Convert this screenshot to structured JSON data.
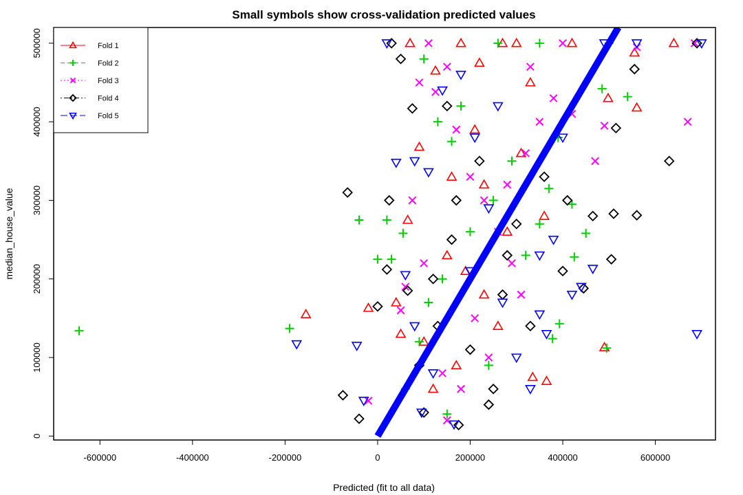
{
  "chart_data": {
    "type": "scatter",
    "title": "Small symbols show cross-validation predicted values",
    "xlabel": "Predicted (fit to all data)",
    "ylabel": "median_house_value",
    "xlim": [
      -700000,
      730000
    ],
    "ylim": [
      -5000,
      520000
    ],
    "x_ticks": [
      -600000,
      -400000,
      -200000,
      0,
      200000,
      400000,
      600000
    ],
    "x_tick_labels": [
      "-600000",
      "-400000",
      "-200000",
      "0",
      "200000",
      "400000",
      "600000"
    ],
    "y_ticks": [
      0,
      100000,
      200000,
      300000,
      400000,
      500000
    ],
    "y_tick_labels": [
      "0",
      "100000",
      "200000",
      "300000",
      "400000",
      "500000"
    ],
    "grid": false,
    "legend_position": "top-left",
    "diagonal": {
      "from": [
        0,
        0
      ],
      "to": [
        520000,
        520000
      ],
      "color": "#0000ff"
    },
    "series": [
      {
        "name": "Fold 1",
        "color": "#ff0000",
        "symbol": "triangle-up",
        "line": "solid",
        "points": [
          [
            -155000,
            155000
          ],
          [
            -20000,
            163000
          ],
          [
            40000,
            170000
          ],
          [
            65000,
            275000
          ],
          [
            90000,
            368000
          ],
          [
            125000,
            465000
          ],
          [
            220000,
            475000
          ],
          [
            335000,
            75000
          ],
          [
            365000,
            70000
          ],
          [
            490000,
            113000
          ],
          [
            498000,
            430000
          ],
          [
            560000,
            418000
          ],
          [
            555000,
            488000
          ],
          [
            230000,
            320000
          ],
          [
            280000,
            260000
          ],
          [
            150000,
            230000
          ],
          [
            190000,
            210000
          ],
          [
            310000,
            360000
          ],
          [
            260000,
            140000
          ],
          [
            100000,
            120000
          ],
          [
            170000,
            90000
          ],
          [
            330000,
            450000
          ],
          [
            210000,
            390000
          ],
          [
            120000,
            60000
          ],
          [
            270000,
            500000
          ],
          [
            70000,
            500000
          ],
          [
            180000,
            500000
          ],
          [
            300000,
            500000
          ],
          [
            420000,
            500000
          ],
          [
            640000,
            500000
          ],
          [
            50000,
            130000
          ],
          [
            230000,
            180000
          ],
          [
            360000,
            280000
          ],
          [
            160000,
            330000
          ]
        ]
      },
      {
        "name": "Fold 2",
        "color": "#00cd00",
        "symbols": "plus",
        "symbol": "plus",
        "line": "dashed",
        "points": [
          [
            -645000,
            134000
          ],
          [
            -190000,
            137000
          ],
          [
            -40000,
            275000
          ],
          [
            0,
            225000
          ],
          [
            20000,
            275000
          ],
          [
            30000,
            225000
          ],
          [
            55000,
            258000
          ],
          [
            90000,
            120000
          ],
          [
            130000,
            400000
          ],
          [
            160000,
            375000
          ],
          [
            350000,
            270000
          ],
          [
            370000,
            315000
          ],
          [
            378000,
            124000
          ],
          [
            393000,
            143000
          ],
          [
            420000,
            295000
          ],
          [
            425000,
            228000
          ],
          [
            450000,
            258000
          ],
          [
            485000,
            442000
          ],
          [
            495000,
            112000
          ],
          [
            540000,
            432000
          ],
          [
            200000,
            260000
          ],
          [
            250000,
            300000
          ],
          [
            290000,
            350000
          ],
          [
            140000,
            200000
          ],
          [
            110000,
            170000
          ],
          [
            240000,
            90000
          ],
          [
            320000,
            230000
          ],
          [
            180000,
            420000
          ],
          [
            100000,
            480000
          ],
          [
            260000,
            500000
          ],
          [
            350000,
            500000
          ],
          [
            500000,
            500000
          ],
          [
            60000,
            60000
          ],
          [
            390000,
            380000
          ],
          [
            150000,
            28000
          ]
        ]
      },
      {
        "name": "Fold 3",
        "color": "#ff00ff",
        "symbol": "cross",
        "line": "dotted",
        "points": [
          [
            -20000,
            45000
          ],
          [
            50000,
            160000
          ],
          [
            90000,
            450000
          ],
          [
            110000,
            500000
          ],
          [
            125000,
            438000
          ],
          [
            150000,
            470000
          ],
          [
            170000,
            390000
          ],
          [
            200000,
            330000
          ],
          [
            230000,
            300000
          ],
          [
            260000,
            260000
          ],
          [
            290000,
            220000
          ],
          [
            310000,
            180000
          ],
          [
            320000,
            360000
          ],
          [
            350000,
            400000
          ],
          [
            380000,
            430000
          ],
          [
            420000,
            410000
          ],
          [
            470000,
            350000
          ],
          [
            490000,
            395000
          ],
          [
            560000,
            495000
          ],
          [
            670000,
            400000
          ],
          [
            685000,
            500000
          ],
          [
            140000,
            80000
          ],
          [
            180000,
            60000
          ],
          [
            100000,
            220000
          ],
          [
            75000,
            300000
          ],
          [
            210000,
            150000
          ],
          [
            240000,
            100000
          ],
          [
            280000,
            320000
          ],
          [
            330000,
            470000
          ],
          [
            400000,
            500000
          ],
          [
            150000,
            20000
          ],
          [
            60000,
            190000
          ]
        ]
      },
      {
        "name": "Fold 4",
        "color": "#000000",
        "symbol": "diamond",
        "line": "dotdash",
        "points": [
          [
            -75000,
            52000
          ],
          [
            -65000,
            310000
          ],
          [
            -40000,
            22000
          ],
          [
            0,
            165000
          ],
          [
            25000,
            300000
          ],
          [
            50000,
            480000
          ],
          [
            65000,
            185000
          ],
          [
            75000,
            417000
          ],
          [
            100000,
            30000
          ],
          [
            120000,
            200000
          ],
          [
            150000,
            420000
          ],
          [
            175000,
            14000
          ],
          [
            200000,
            110000
          ],
          [
            220000,
            350000
          ],
          [
            250000,
            60000
          ],
          [
            280000,
            230000
          ],
          [
            300000,
            270000
          ],
          [
            330000,
            140000
          ],
          [
            360000,
            330000
          ],
          [
            400000,
            210000
          ],
          [
            410000,
            300000
          ],
          [
            445000,
            188000
          ],
          [
            465000,
            280000
          ],
          [
            505000,
            225000
          ],
          [
            510000,
            283000
          ],
          [
            515000,
            392000
          ],
          [
            555000,
            467000
          ],
          [
            560000,
            281000
          ],
          [
            630000,
            350000
          ],
          [
            690000,
            500000
          ],
          [
            130000,
            140000
          ],
          [
            90000,
            90000
          ],
          [
            160000,
            250000
          ],
          [
            240000,
            40000
          ],
          [
            270000,
            180000
          ],
          [
            30000,
            500000
          ],
          [
            20000,
            212000
          ],
          [
            170000,
            300000
          ]
        ]
      },
      {
        "name": "Fold 5",
        "color": "#0000ff",
        "symbol": "triangle-down",
        "line": "longdash",
        "points": [
          [
            -175000,
            117000
          ],
          [
            -45000,
            115000
          ],
          [
            -30000,
            45000
          ],
          [
            20000,
            500000
          ],
          [
            40000,
            348000
          ],
          [
            60000,
            205000
          ],
          [
            80000,
            350000
          ],
          [
            95000,
            30000
          ],
          [
            110000,
            336000
          ],
          [
            140000,
            440000
          ],
          [
            165000,
            15000
          ],
          [
            180000,
            460000
          ],
          [
            210000,
            380000
          ],
          [
            240000,
            290000
          ],
          [
            270000,
            170000
          ],
          [
            300000,
            100000
          ],
          [
            350000,
            230000
          ],
          [
            380000,
            250000
          ],
          [
            420000,
            180000
          ],
          [
            440000,
            190000
          ],
          [
            465000,
            213000
          ],
          [
            490000,
            500000
          ],
          [
            560000,
            500000
          ],
          [
            690000,
            130000
          ],
          [
            700000,
            500000
          ],
          [
            350000,
            155000
          ],
          [
            365000,
            130000
          ],
          [
            400000,
            380000
          ],
          [
            120000,
            80000
          ],
          [
            200000,
            210000
          ],
          [
            260000,
            420000
          ],
          [
            330000,
            60000
          ],
          [
            80000,
            140000
          ]
        ]
      }
    ]
  }
}
